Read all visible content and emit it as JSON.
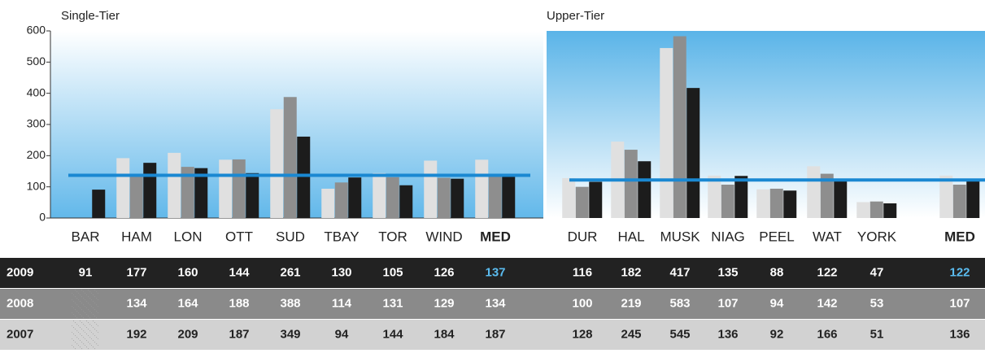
{
  "chart_data": [
    {
      "type": "bar",
      "title": "Single-Tier",
      "categories": [
        "BAR",
        "HAM",
        "LON",
        "OTT",
        "SUD",
        "TBAY",
        "TOR",
        "WIND",
        "MED"
      ],
      "series": [
        {
          "name": "2007",
          "color": "#e0e0e0",
          "values": [
            null,
            192,
            209,
            187,
            349,
            94,
            144,
            184,
            187
          ]
        },
        {
          "name": "2008",
          "color": "#8e8e8e",
          "values": [
            null,
            134,
            164,
            188,
            388,
            114,
            131,
            129,
            134
          ]
        },
        {
          "name": "2009",
          "color": "#1c1c1c",
          "values": [
            91,
            177,
            160,
            144,
            261,
            130,
            105,
            126,
            137
          ]
        }
      ],
      "ylim": [
        0,
        600
      ],
      "yticks": [
        0,
        100,
        200,
        300,
        400,
        500,
        600
      ]
    },
    {
      "type": "bar",
      "title": "Upper-Tier",
      "categories": [
        "DUR",
        "HAL",
        "MUSK",
        "NIAG",
        "PEEL",
        "WAT",
        "YORK",
        "MED"
      ],
      "series": [
        {
          "name": "2007",
          "color": "#e0e0e0",
          "values": [
            128,
            245,
            545,
            136,
            92,
            166,
            51,
            136
          ]
        },
        {
          "name": "2008",
          "color": "#8e8e8e",
          "values": [
            100,
            219,
            583,
            107,
            94,
            142,
            53,
            107
          ]
        },
        {
          "name": "2009",
          "color": "#1c1c1c",
          "values": [
            116,
            182,
            417,
            135,
            88,
            122,
            47,
            122
          ]
        }
      ],
      "ylim": [
        0,
        600
      ]
    }
  ]
}
